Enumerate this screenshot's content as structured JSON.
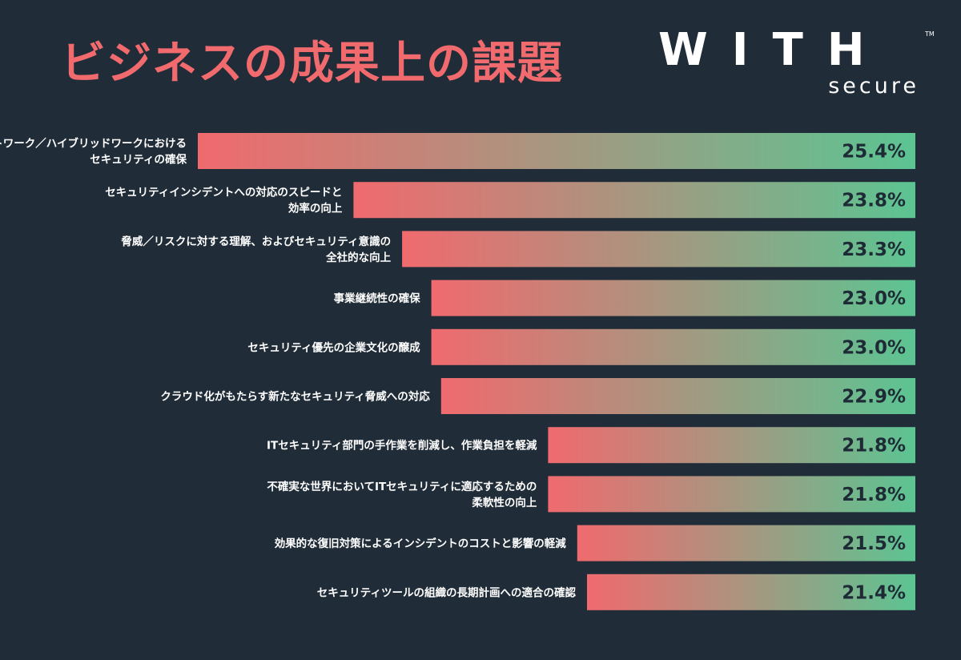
{
  "title": "ビジネスの成果上の課題",
  "logo": {
    "main": "WITH",
    "sub": "secure",
    "tm": "TM"
  },
  "colors": {
    "background": "#202c37",
    "title": "#f06a6e",
    "bar_start": "#f06a6e",
    "bar_end": "#5cc492",
    "value_text": "#1e2b36"
  },
  "chart_data": {
    "type": "bar",
    "orientation": "horizontal",
    "unit": "%",
    "categories": [
      [
        "リモートワーク／ハイブリッドワークにおける",
        "セキュリティの確保"
      ],
      [
        "セキュリティインシデントへの対応のスピードと",
        "効率の向上"
      ],
      [
        "脅威／リスクに対する理解、およびセキュリティ意識の",
        "全社的な向上"
      ],
      [
        "事業継続性の確保"
      ],
      [
        "セキュリティ優先の企業文化の醸成"
      ],
      [
        "クラウド化がもたらす新たなセキュリティ脅威への対応"
      ],
      [
        "ITセキュリティ部門の手作業を削減し、作業負担を軽減"
      ],
      [
        "不確実な世界においてITセキュリティに適応するための",
        "柔軟性の向上"
      ],
      [
        "効果的な復旧対策によるインシデントのコストと影響の軽減"
      ],
      [
        "セキュリティツールの組織の長期計画への適合の確認"
      ]
    ],
    "values": [
      25.4,
      23.8,
      23.3,
      23.0,
      23.0,
      22.9,
      21.8,
      21.8,
      21.5,
      21.4
    ],
    "value_labels": [
      "25.4%",
      "23.8%",
      "23.3%",
      "23.0%",
      "23.0%",
      "22.9%",
      "21.8%",
      "21.8%",
      "21.5%",
      "21.4%"
    ]
  }
}
